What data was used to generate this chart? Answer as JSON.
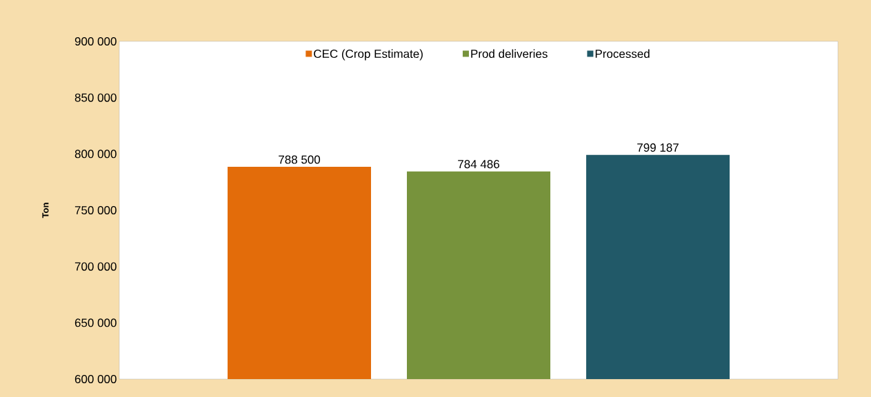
{
  "chart_data": {
    "type": "bar",
    "ylabel": "Ton",
    "categories": [
      null
    ],
    "series": [
      {
        "name": "CEC (Crop Estimate)",
        "color": "#e36c0a",
        "values": [
          788500
        ],
        "value_labels": [
          "788 500"
        ]
      },
      {
        "name": "Prod deliveries",
        "color": "#77933c",
        "values": [
          784486
        ],
        "value_labels": [
          "784 486"
        ]
      },
      {
        "name": "Processed",
        "color": "#215968",
        "values": [
          799187
        ],
        "value_labels": [
          "799 187"
        ]
      }
    ],
    "ylim": [
      600000,
      900000
    ],
    "yticks": [
      {
        "value": 600000,
        "label": "600 000"
      },
      {
        "value": 650000,
        "label": "650 000"
      },
      {
        "value": 700000,
        "label": "700 000"
      },
      {
        "value": 750000,
        "label": "750 000"
      },
      {
        "value": 800000,
        "label": "800 000"
      },
      {
        "value": 850000,
        "label": "850 000"
      },
      {
        "value": 900000,
        "label": "900 000"
      }
    ],
    "grid": false,
    "legend": "top"
  }
}
